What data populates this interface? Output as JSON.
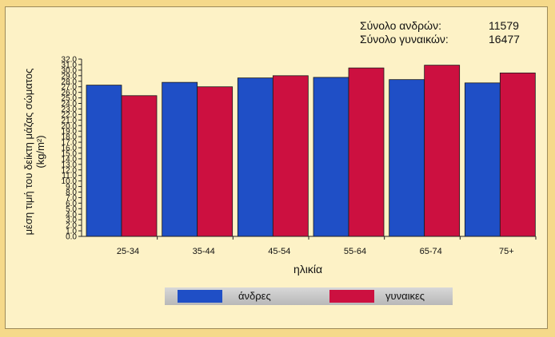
{
  "totals": [
    {
      "label": "Σύνολο ανδρών:",
      "value": "11579"
    },
    {
      "label": "Σύνολο γυναικών:",
      "value": "16477"
    }
  ],
  "colors": {
    "men": "#1f4fc6",
    "women": "#cc1040",
    "grid": "#222222"
  },
  "chart_data": {
    "type": "bar",
    "xlabel": "ηλικία",
    "ylabel": "μέση τιμή του δείκτη μάζας σώματος (kg/m²)",
    "ylim": [
      0,
      32
    ],
    "yticks": [
      "0.0",
      "1.0",
      "2.0",
      "3.0",
      "4.0",
      "5.0",
      "6.0",
      "7.0",
      "8.0",
      "9.0",
      "10.0",
      "11.0",
      "12.0",
      "13.0",
      "14.0",
      "15.0",
      "16.0",
      "17.0",
      "18.0",
      "19.0",
      "20.0",
      "21.0",
      "22.0",
      "23.0",
      "24.0",
      "25.0",
      "26.0",
      "27.0",
      "28.0",
      "29.0",
      "30.0",
      "31.0",
      "32.0"
    ],
    "categories": [
      "25-34",
      "35-44",
      "45-54",
      "55-64",
      "65-74",
      "75+"
    ],
    "series": [
      {
        "name": "άνδρες",
        "values": [
          27.3,
          27.8,
          28.6,
          28.7,
          28.3,
          27.7
        ]
      },
      {
        "name": "γυναικες",
        "values": [
          25.4,
          27.0,
          29.0,
          30.4,
          30.9,
          29.5
        ]
      }
    ],
    "grid": false,
    "legend": "bottom"
  }
}
